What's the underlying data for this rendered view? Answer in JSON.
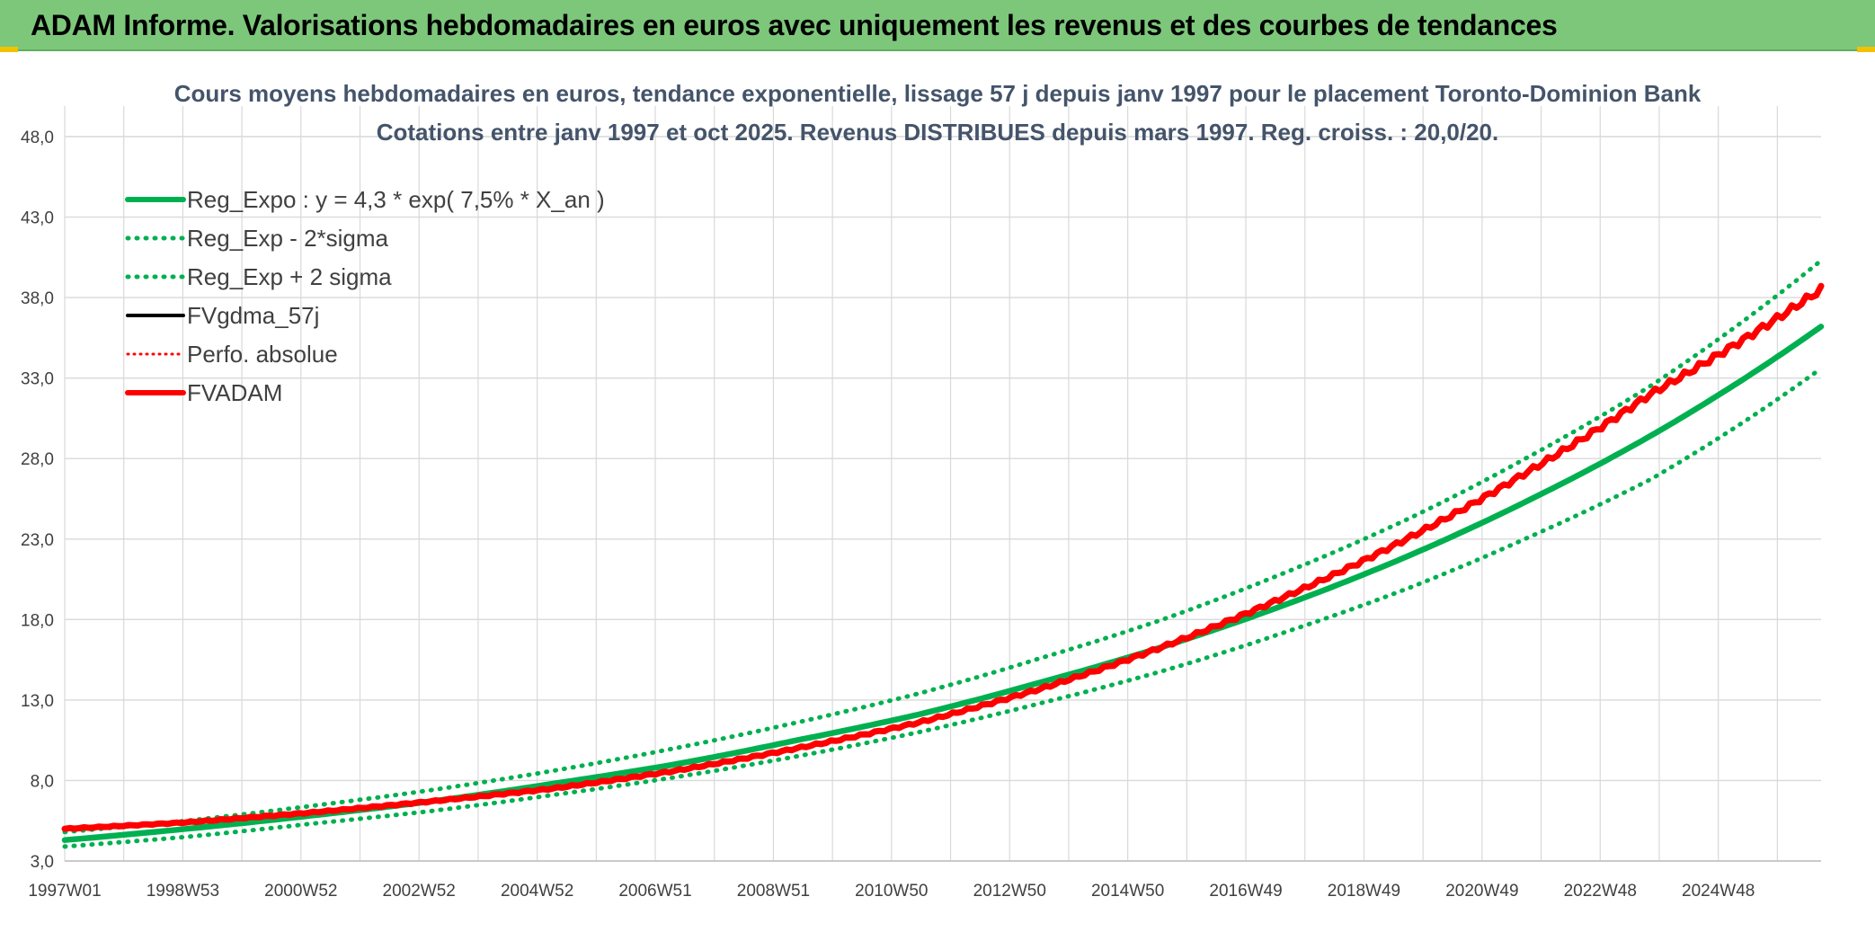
{
  "header": {
    "title": "ADAM Informe. Valorisations hebdomadaires en euros avec uniquement les revenus et des courbes de tendances"
  },
  "colors": {
    "banner": "#7dc77b",
    "reg_green": "#00b050",
    "red": "#ff0000",
    "black": "#000000",
    "grid": "#d9d9d9"
  },
  "chart_data": {
    "type": "line",
    "title": "Cours moyens hebdomadaires en euros, tendance exponentielle, lissage 57 j depuis janv 1997 pour le placement Toronto-Dominion Bank",
    "subtitle": "Cotations entre janv 1997 et oct 2025. Revenus DISTRIBUES depuis mars 1997. Reg. croiss. : 20,0/20.",
    "xlabel": "",
    "ylabel": "",
    "ylim": [
      3.0,
      48.0
    ],
    "xlim": [
      1997.0,
      2025.8
    ],
    "yticks": [
      "3,0",
      "8,0",
      "13,0",
      "18,0",
      "23,0",
      "28,0",
      "33,0",
      "38,0",
      "43,0",
      "48,0"
    ],
    "xticks": [
      "1997W01",
      "1998W53",
      "2000W52",
      "2002W52",
      "2004W52",
      "2006W51",
      "2008W51",
      "2010W50",
      "2012W50",
      "2014W50",
      "2016W49",
      "2018W49",
      "2020W49",
      "2022W48",
      "2024W48"
    ],
    "grid": true,
    "legend_position": "top-left",
    "series": [
      {
        "name": "Reg_Expo : y = 4,3 * exp( 7,5% *  X_an )",
        "style": "solid",
        "color": "#00b050",
        "x": [
          1997,
          1999,
          2001,
          2003,
          2005,
          2007,
          2009,
          2011,
          2013,
          2015,
          2017,
          2019,
          2021,
          2023,
          2025.8
        ],
        "values": [
          4.3,
          5.0,
          5.8,
          6.7,
          7.8,
          9.0,
          10.5,
          12.1,
          14.1,
          16.3,
          18.9,
          21.9,
          25.4,
          29.4,
          36.2
        ]
      },
      {
        "name": "Reg_Exp - 2*sigma",
        "style": "dotted",
        "color": "#00b050",
        "x": [
          1997,
          1999,
          2001,
          2003,
          2005,
          2007,
          2009,
          2011,
          2013,
          2015,
          2017,
          2019,
          2021,
          2023,
          2025.8
        ],
        "values": [
          3.9,
          4.5,
          5.3,
          6.1,
          7.1,
          8.2,
          9.5,
          11.0,
          12.8,
          14.8,
          17.2,
          19.9,
          23.1,
          26.7,
          33.6
        ]
      },
      {
        "name": "Reg_Exp + 2 sigma",
        "style": "dotted",
        "color": "#00b050",
        "x": [
          1997,
          1999,
          2001,
          2003,
          2005,
          2007,
          2009,
          2011,
          2013,
          2015,
          2017,
          2019,
          2021,
          2023,
          2025.8
        ],
        "values": [
          4.8,
          5.5,
          6.4,
          7.4,
          8.6,
          10.0,
          11.6,
          13.4,
          15.6,
          18.0,
          20.9,
          24.2,
          28.1,
          32.5,
          40.3
        ]
      },
      {
        "name": "FVgdma_57j",
        "style": "solid",
        "color": "#000000",
        "x": [
          1997,
          1999,
          2001,
          2003,
          2005,
          2007,
          2009,
          2011,
          2013,
          2015,
          2017,
          2019,
          2021,
          2023,
          2025.8
        ],
        "values": [
          5.0,
          5.4,
          6.0,
          6.7,
          7.5,
          8.6,
          10.0,
          11.6,
          13.7,
          16.3,
          19.4,
          23.0,
          27.2,
          32.0,
          38.5
        ]
      },
      {
        "name": "Perfo. absolue",
        "style": "dotted",
        "color": "#ff0000",
        "x": [
          1997,
          1999,
          2001,
          2003,
          2005,
          2007,
          2009,
          2011,
          2013,
          2015,
          2017,
          2019,
          2021,
          2023,
          2025.8
        ],
        "values": [
          5.0,
          5.4,
          6.0,
          6.7,
          7.5,
          8.6,
          10.0,
          11.6,
          13.7,
          16.3,
          19.4,
          23.0,
          27.2,
          32.0,
          38.5
        ]
      },
      {
        "name": "FVADAM",
        "style": "solid",
        "color": "#ff0000",
        "x": [
          1997,
          1999,
          2001,
          2003,
          2005,
          2007,
          2009,
          2011,
          2013,
          2015,
          2017,
          2019,
          2021,
          2023,
          2025.8
        ],
        "values": [
          5.0,
          5.4,
          6.0,
          6.7,
          7.5,
          8.6,
          10.0,
          11.6,
          13.7,
          16.3,
          19.4,
          23.0,
          27.2,
          32.0,
          38.5
        ]
      }
    ]
  }
}
